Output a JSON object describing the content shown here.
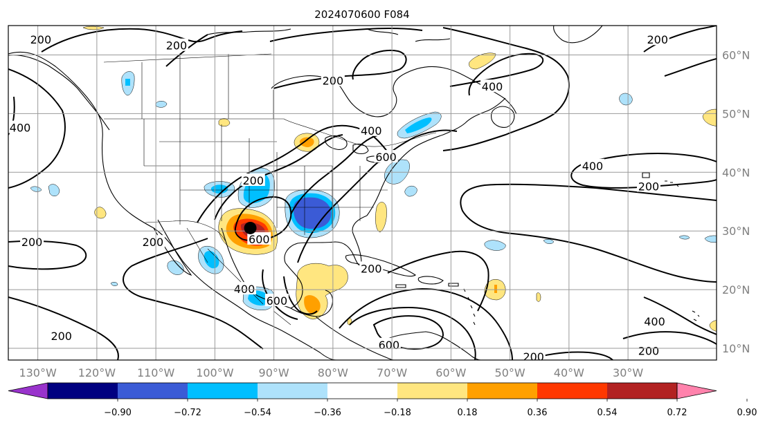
{
  "title": "2024070600 F084",
  "map": {
    "projection": "plate-carree",
    "lon_range": [
      -135,
      -15
    ],
    "lat_range": [
      8,
      65
    ],
    "grid": true,
    "lon_ticks": [
      -130,
      -120,
      -110,
      -100,
      -90,
      -80,
      -70,
      -60,
      -50,
      -40,
      -30
    ],
    "lon_labels": [
      "130°W",
      "120°W",
      "110°W",
      "100°W",
      "90°W",
      "80°W",
      "70°W",
      "60°W",
      "50°W",
      "40°W",
      "30°W"
    ],
    "lat_ticks": [
      10,
      20,
      30,
      40,
      50,
      60
    ],
    "lat_labels": [
      "10°N",
      "20°N",
      "30°N",
      "40°N",
      "50°N",
      "60°N"
    ],
    "marker": {
      "name": "storm-center",
      "lon": -94,
      "lat": 30.5,
      "color": "#000000"
    }
  },
  "colorbar": {
    "levels": [
      "−0.90",
      "−0.72",
      "−0.54",
      "−0.36",
      "−0.18",
      "0.18",
      "0.36",
      "0.54",
      "0.72",
      "0.90"
    ],
    "colors": [
      "#9933cc",
      "#000080",
      "#3b5bd6",
      "#00bfff",
      "#aee2fb",
      "#ffffff",
      "#ffe680",
      "#ffa000",
      "#ff3800",
      "#b22222",
      "#ff82ac"
    ],
    "extend": "both"
  },
  "shading_colors": {
    "neg_strong": "#3b5bd6",
    "neg_mid": "#00bfff",
    "neg_weak": "#aee2fb",
    "pos_weak": "#ffe680",
    "pos_mid": "#ffa000",
    "pos_strong": "#ff3800",
    "pos_max": "#b22222"
  },
  "contour_labels": [
    {
      "text": "200",
      "lon": -129.5,
      "lat": 62.5
    },
    {
      "text": "200",
      "lon": -106.5,
      "lat": 61.5
    },
    {
      "text": "200",
      "lon": -80,
      "lat": 55.5
    },
    {
      "text": "400",
      "lon": -53,
      "lat": 54.5
    },
    {
      "text": "200",
      "lon": -25,
      "lat": 62.5
    },
    {
      "text": "400",
      "lon": -133,
      "lat": 47.5
    },
    {
      "text": "400",
      "lon": -73.5,
      "lat": 47
    },
    {
      "text": "600",
      "lon": -71,
      "lat": 42.5
    },
    {
      "text": "200",
      "lon": -93.5,
      "lat": 38.5
    },
    {
      "text": "400",
      "lon": -36,
      "lat": 41
    },
    {
      "text": "200",
      "lon": -26.5,
      "lat": 37.5
    },
    {
      "text": "600",
      "lon": -92.5,
      "lat": 28.5
    },
    {
      "text": "200",
      "lon": -131,
      "lat": 28
    },
    {
      "text": "200",
      "lon": -110.5,
      "lat": 28
    },
    {
      "text": "200",
      "lon": -73.5,
      "lat": 23.5
    },
    {
      "text": "400",
      "lon": -95,
      "lat": 20
    },
    {
      "text": "600",
      "lon": -89.5,
      "lat": 18
    },
    {
      "text": "400",
      "lon": -25.5,
      "lat": 14.5
    },
    {
      "text": "200",
      "lon": -126,
      "lat": 12
    },
    {
      "text": "600",
      "lon": -70.5,
      "lat": 10.5
    },
    {
      "text": "200",
      "lon": -26.5,
      "lat": 9.5
    },
    {
      "text": "200",
      "lon": -46,
      "lat": 8.5
    }
  ]
}
